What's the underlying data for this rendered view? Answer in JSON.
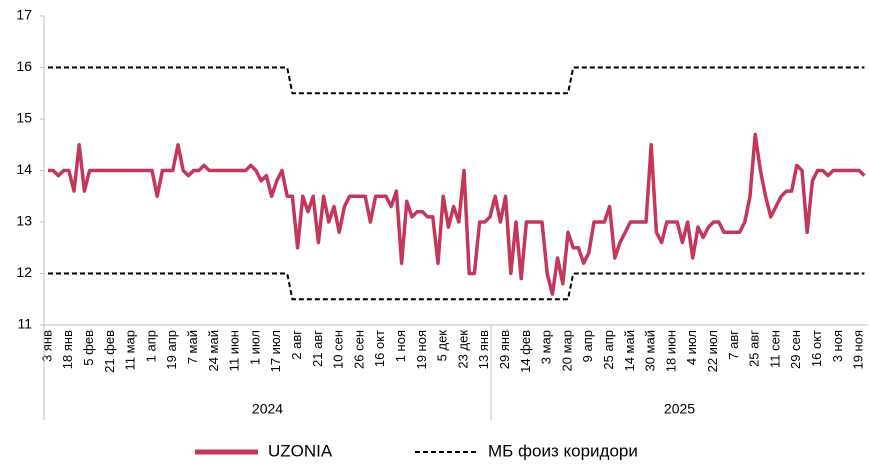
{
  "chart_data": {
    "type": "line",
    "categories": [
      "3 янв",
      null,
      null,
      null,
      "18 янв",
      null,
      null,
      null,
      "5 фев",
      null,
      null,
      null,
      "21 фев",
      null,
      null,
      null,
      "11 мар",
      null,
      null,
      null,
      "1 апр",
      null,
      null,
      null,
      "19 апр",
      null,
      null,
      null,
      "7 май",
      null,
      null,
      null,
      "24 май",
      null,
      null,
      null,
      "11 июн",
      null,
      null,
      null,
      "1 июл",
      null,
      null,
      null,
      "17 июл",
      null,
      null,
      null,
      "2 авг",
      null,
      null,
      null,
      "21 авг",
      null,
      null,
      null,
      "10 сен",
      null,
      null,
      null,
      "26 сен",
      null,
      null,
      null,
      "16 окт",
      null,
      null,
      null,
      "1 ноя",
      null,
      null,
      null,
      "19 ноя",
      null,
      null,
      null,
      "5 дек",
      null,
      null,
      null,
      "23 дек",
      null,
      null,
      null,
      "13 янв",
      null,
      null,
      null,
      "29 янв",
      null,
      null,
      null,
      "14 фев",
      null,
      null,
      null,
      "3 мар",
      null,
      null,
      null,
      "20 мар",
      null,
      null,
      null,
      "9 апр",
      null,
      null,
      null,
      "25 апр",
      null,
      null,
      null,
      "14 май",
      null,
      null,
      null,
      "30 май",
      null,
      null,
      null,
      "18 июн",
      null,
      null,
      null,
      "4 июл",
      null,
      null,
      null,
      "22 июл",
      null,
      null,
      null,
      "7 авг",
      null,
      null,
      null,
      "25 авг",
      null,
      null,
      null,
      "11 сен",
      null,
      null,
      null,
      "29 сен",
      null,
      null,
      null,
      "16 окт",
      null,
      null,
      null,
      "3 ноя",
      null,
      null,
      null,
      "19 ноя",
      null
    ],
    "years": [
      "2024",
      "2025"
    ],
    "series": [
      {
        "name": "UZONIA",
        "color": "#c4375b",
        "style": "solid",
        "values": [
          14,
          14,
          13.9,
          14,
          14,
          13.6,
          14.5,
          13.6,
          14,
          14,
          14,
          14,
          14,
          14,
          14,
          14,
          14,
          14,
          14,
          14,
          14,
          13.5,
          14,
          14,
          14,
          14.5,
          14,
          13.9,
          14,
          14,
          14.1,
          14,
          14,
          14,
          14,
          14,
          14,
          14,
          14,
          14.1,
          14,
          13.8,
          13.9,
          13.5,
          13.8,
          14,
          13.5,
          13.5,
          12.5,
          13.5,
          13.2,
          13.5,
          12.6,
          13.5,
          13,
          13.3,
          12.8,
          13.3,
          13.5,
          13.5,
          13.5,
          13.5,
          13,
          13.5,
          13.5,
          13.5,
          13.3,
          13.6,
          12.2,
          13.4,
          13.1,
          13.2,
          13.2,
          13.1,
          13.1,
          12.2,
          13.5,
          12.9,
          13.3,
          13,
          14,
          12,
          12,
          13,
          13,
          13.1,
          13.5,
          13,
          13.5,
          12,
          13,
          11.9,
          13,
          13,
          13,
          13,
          12,
          11.6,
          12.3,
          11.8,
          12.8,
          12.5,
          12.5,
          12.2,
          12.4,
          13,
          13,
          13,
          13.3,
          12.3,
          12.6,
          12.8,
          13,
          13,
          13,
          13,
          14.5,
          12.8,
          12.6,
          13,
          13,
          13,
          12.6,
          13,
          12.3,
          12.9,
          12.7,
          12.9,
          13,
          13,
          12.8,
          12.8,
          12.8,
          12.8,
          13,
          13.5,
          14.7,
          14,
          13.5,
          13.1,
          13.3,
          13.5,
          13.6,
          13.6,
          14.1,
          14,
          12.8,
          13.8,
          14,
          14,
          13.9,
          14,
          14,
          14,
          14,
          14,
          14,
          13.9
        ]
      },
      {
        "name": "МБ фоиз коридори",
        "color": "#000000",
        "style": "dashed",
        "values": [
          16,
          16,
          16,
          16,
          16,
          16,
          16,
          16,
          16,
          16,
          16,
          16,
          16,
          16,
          16,
          16,
          16,
          16,
          16,
          16,
          16,
          16,
          16,
          16,
          16,
          16,
          16,
          16,
          16,
          16,
          16,
          16,
          16,
          16,
          16,
          16,
          16,
          16,
          16,
          16,
          16,
          16,
          16,
          16,
          16,
          16,
          16,
          15.5,
          15.5,
          15.5,
          15.5,
          15.5,
          15.5,
          15.5,
          15.5,
          15.5,
          15.5,
          15.5,
          15.5,
          15.5,
          15.5,
          15.5,
          15.5,
          15.5,
          15.5,
          15.5,
          15.5,
          15.5,
          15.5,
          15.5,
          15.5,
          15.5,
          15.5,
          15.5,
          15.5,
          15.5,
          15.5,
          15.5,
          15.5,
          15.5,
          15.5,
          15.5,
          15.5,
          15.5,
          15.5,
          15.5,
          15.5,
          15.5,
          15.5,
          15.5,
          15.5,
          15.5,
          15.5,
          15.5,
          15.5,
          15.5,
          15.5,
          15.5,
          15.5,
          15.5,
          15.5,
          16,
          16,
          16,
          16,
          16,
          16,
          16,
          16,
          16,
          16,
          16,
          16,
          16,
          16,
          16,
          16,
          16,
          16,
          16,
          16,
          16,
          16,
          16,
          16,
          16,
          16,
          16,
          16,
          16,
          16,
          16,
          16,
          16,
          16,
          16,
          16,
          16,
          16,
          16,
          16,
          16,
          16,
          16,
          16,
          16,
          16,
          16,
          16,
          16,
          16,
          16,
          16,
          16,
          16,
          16,
          16,
          16
        ]
      },
      {
        "color": "#000000",
        "style": "dashed",
        "values": [
          12,
          12,
          12,
          12,
          12,
          12,
          12,
          12,
          12,
          12,
          12,
          12,
          12,
          12,
          12,
          12,
          12,
          12,
          12,
          12,
          12,
          12,
          12,
          12,
          12,
          12,
          12,
          12,
          12,
          12,
          12,
          12,
          12,
          12,
          12,
          12,
          12,
          12,
          12,
          12,
          12,
          12,
          12,
          12,
          12,
          12,
          12,
          11.5,
          11.5,
          11.5,
          11.5,
          11.5,
          11.5,
          11.5,
          11.5,
          11.5,
          11.5,
          11.5,
          11.5,
          11.5,
          11.5,
          11.5,
          11.5,
          11.5,
          11.5,
          11.5,
          11.5,
          11.5,
          11.5,
          11.5,
          11.5,
          11.5,
          11.5,
          11.5,
          11.5,
          11.5,
          11.5,
          11.5,
          11.5,
          11.5,
          11.5,
          11.5,
          11.5,
          11.5,
          11.5,
          11.5,
          11.5,
          11.5,
          11.5,
          11.5,
          11.5,
          11.5,
          11.5,
          11.5,
          11.5,
          11.5,
          11.5,
          11.5,
          11.5,
          11.5,
          11.5,
          12,
          12,
          12,
          12,
          12,
          12,
          12,
          12,
          12,
          12,
          12,
          12,
          12,
          12,
          12,
          12,
          12,
          12,
          12,
          12,
          12,
          12,
          12,
          12,
          12,
          12,
          12,
          12,
          12,
          12,
          12,
          12,
          12,
          12,
          12,
          12,
          12,
          12,
          12,
          12,
          12,
          12,
          12,
          12,
          12,
          12,
          12,
          12,
          12,
          12,
          12,
          12,
          12,
          12,
          12,
          12,
          12
        ]
      }
    ],
    "ylim": [
      11,
      17
    ],
    "yticks": [
      11,
      12,
      13,
      14,
      15,
      16,
      17
    ],
    "grid": false,
    "legend": "bottom"
  }
}
